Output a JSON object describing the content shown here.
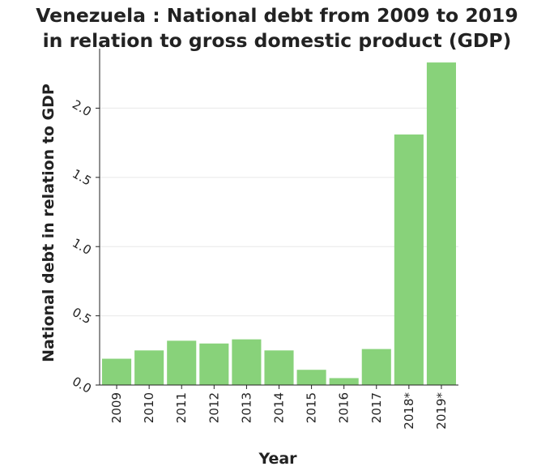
{
  "chart_data": {
    "type": "bar",
    "title_line1": "Venezuela : National debt from 2009 to 2019",
    "title_line2": "in relation to gross domestic product (GDP)",
    "xlabel": "Year",
    "ylabel": "National debt in relation to GDP",
    "categories": [
      "2009",
      "2010",
      "2011",
      "2012",
      "2013",
      "2014",
      "2015",
      "2016",
      "2017",
      "2018*",
      "2019*"
    ],
    "values": [
      0.19,
      0.25,
      0.32,
      0.3,
      0.33,
      0.25,
      0.11,
      0.05,
      0.26,
      1.81,
      2.33
    ],
    "yticks": [
      "0.0",
      "0.5",
      "1.0",
      "1.5",
      "2.0"
    ],
    "ytick_values": [
      0.0,
      0.5,
      1.0,
      1.5,
      2.0
    ],
    "ylim": [
      0,
      2.43
    ],
    "grid": true,
    "bar_color": "#88d27a",
    "background_color": "#ffffff",
    "grid_color": "#e8e8e8"
  }
}
